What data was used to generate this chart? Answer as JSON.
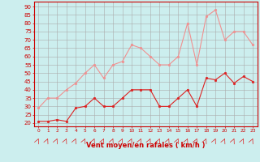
{
  "x": [
    0,
    1,
    2,
    3,
    4,
    5,
    6,
    7,
    8,
    9,
    10,
    11,
    12,
    13,
    14,
    15,
    16,
    17,
    18,
    19,
    20,
    21,
    22,
    23
  ],
  "wind_avg": [
    21,
    21,
    22,
    21,
    29,
    30,
    35,
    30,
    30,
    35,
    40,
    40,
    40,
    30,
    30,
    35,
    40,
    30,
    47,
    46,
    50,
    44,
    48,
    45
  ],
  "wind_gust": [
    29,
    35,
    35,
    40,
    44,
    50,
    55,
    47,
    55,
    57,
    67,
    65,
    60,
    55,
    55,
    60,
    80,
    55,
    84,
    88,
    70,
    75,
    75,
    67
  ],
  "avg_color": "#dd2222",
  "gust_color": "#f09090",
  "bg_color": "#cceeee",
  "grid_color": "#aaaaaa",
  "xlabel": "Vent moyen/en rafales ( km/h )",
  "xlabel_color": "#cc0000",
  "tick_color": "#cc0000",
  "yticks": [
    20,
    25,
    30,
    35,
    40,
    45,
    50,
    55,
    60,
    65,
    70,
    75,
    80,
    85,
    90
  ],
  "ylim": [
    18,
    93
  ],
  "xlim": [
    -0.5,
    23.5
  ]
}
